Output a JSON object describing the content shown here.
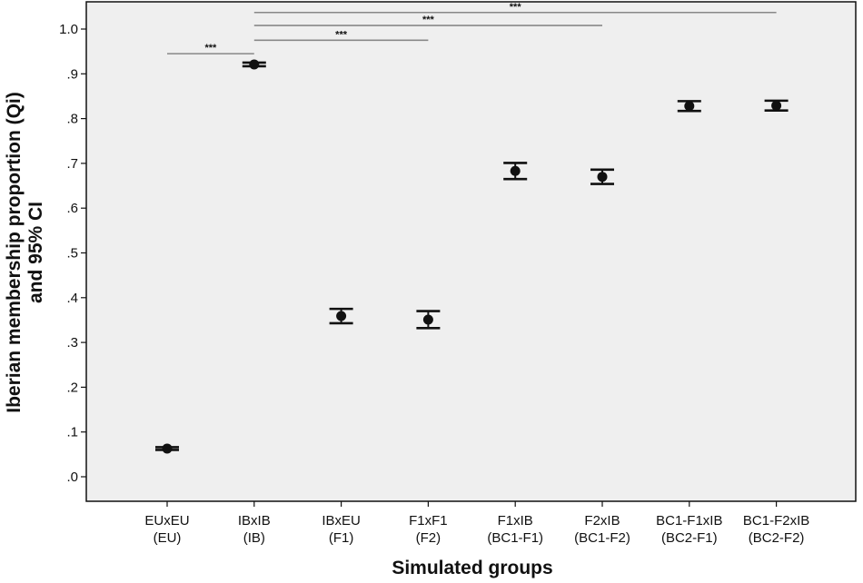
{
  "chart_data": {
    "type": "scatter",
    "subtype": "error-bar",
    "ylabel_lines": [
      "Iberian membership proportion (Qi)",
      "and 95% CI"
    ],
    "xlabel": "Simulated groups",
    "ylim": [
      0,
      1.05
    ],
    "yticks": [
      0,
      0.1,
      0.2,
      0.3,
      0.4,
      0.5,
      0.6,
      0.7,
      0.8,
      0.9,
      1.0
    ],
    "ytick_labels": [
      ".0",
      ".1",
      ".2",
      ".3",
      ".4",
      ".5",
      ".6",
      ".7",
      ".8",
      ".9",
      "1.0"
    ],
    "categories": [
      {
        "line1": "EUxEU",
        "line2": "(EU)"
      },
      {
        "line1": "IBxIB",
        "line2": "(IB)"
      },
      {
        "line1": "IBxEU",
        "line2": "(F1)"
      },
      {
        "line1": "F1xF1",
        "line2": "(F2)"
      },
      {
        "line1": "F1xIB",
        "line2": "(BC1-F1)"
      },
      {
        "line1": "F2xIB",
        "line2": "(BC1-F2)"
      },
      {
        "line1": "BC1-F1xIB",
        "line2": "(BC2-F1)"
      },
      {
        "line1": "BC1-F2xIB",
        "line2": "(BC2-F2)"
      }
    ],
    "series": [
      {
        "means": [
          0.063,
          0.921,
          0.359,
          0.351,
          0.683,
          0.67,
          0.828,
          0.829
        ],
        "ci_low": [
          0.06,
          0.917,
          0.343,
          0.332,
          0.665,
          0.654,
          0.817,
          0.818
        ],
        "ci_high": [
          0.066,
          0.925,
          0.375,
          0.37,
          0.701,
          0.686,
          0.839,
          0.84
        ]
      }
    ],
    "significance": [
      {
        "from": 0,
        "to": 1,
        "y": 0.945,
        "label": "***"
      },
      {
        "from": 1,
        "to": 3,
        "y": 0.975,
        "label": "***"
      },
      {
        "from": 1,
        "to": 5,
        "y": 1.008,
        "label": "***"
      },
      {
        "from": 1,
        "to": 7,
        "y": 1.037,
        "label": "***"
      }
    ],
    "colors": {
      "plot_background": "#efefef",
      "marker": "#111111",
      "significance_line": "#888888",
      "axis": "#111111"
    }
  }
}
